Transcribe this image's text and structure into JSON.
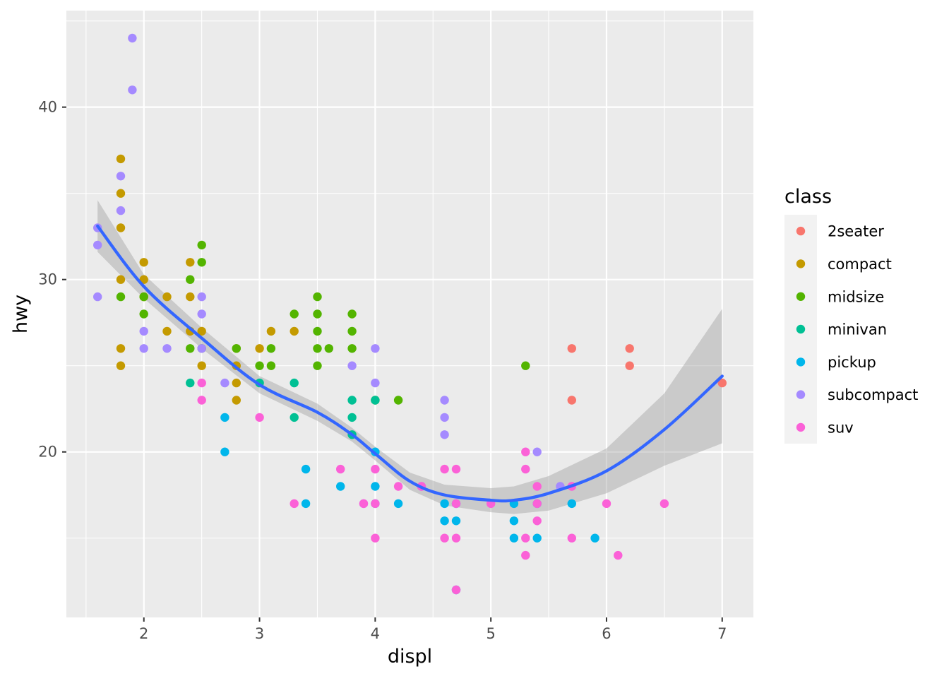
{
  "chart_data": {
    "type": "scatter",
    "xlabel": "displ",
    "ylabel": "hwy",
    "xlim": [
      1.33,
      7.27
    ],
    "ylim": [
      10.4,
      45.6
    ],
    "x_ticks": [
      2,
      3,
      4,
      5,
      6,
      7
    ],
    "y_ticks": [
      20,
      30,
      40
    ],
    "grid": true,
    "legend": {
      "title": "class",
      "position": "right",
      "entries": [
        {
          "name": "2seater",
          "color": "#F8766D"
        },
        {
          "name": "compact",
          "color": "#C49A00"
        },
        {
          "name": "midsize",
          "color": "#53B400"
        },
        {
          "name": "minivan",
          "color": "#00C094"
        },
        {
          "name": "pickup",
          "color": "#00B6EB"
        },
        {
          "name": "subcompact",
          "color": "#A58AFF"
        },
        {
          "name": "suv",
          "color": "#FB61D7"
        }
      ]
    },
    "series": [
      {
        "name": "2seater",
        "points": [
          [
            5.7,
            26
          ],
          [
            5.7,
            23
          ],
          [
            6.2,
            26
          ],
          [
            6.2,
            25
          ],
          [
            7.0,
            24
          ]
        ]
      },
      {
        "name": "compact",
        "points": [
          [
            1.8,
            37
          ],
          [
            1.8,
            35
          ],
          [
            1.8,
            33
          ],
          [
            1.8,
            30
          ],
          [
            1.8,
            26
          ],
          [
            1.8,
            25
          ],
          [
            2.0,
            31
          ],
          [
            2.0,
            30
          ],
          [
            2.0,
            29
          ],
          [
            2.2,
            29
          ],
          [
            2.2,
            27
          ],
          [
            2.4,
            31
          ],
          [
            2.4,
            29
          ],
          [
            2.4,
            27
          ],
          [
            2.5,
            27
          ],
          [
            2.5,
            25
          ],
          [
            2.8,
            26
          ],
          [
            2.8,
            25
          ],
          [
            2.8,
            24
          ],
          [
            2.8,
            23
          ],
          [
            3.0,
            26
          ],
          [
            3.1,
            27
          ],
          [
            3.3,
            27
          ]
        ]
      },
      {
        "name": "midsize",
        "points": [
          [
            1.8,
            29
          ],
          [
            2.0,
            29
          ],
          [
            2.0,
            28
          ],
          [
            2.4,
            30
          ],
          [
            2.4,
            26
          ],
          [
            2.5,
            32
          ],
          [
            2.5,
            31
          ],
          [
            2.5,
            26
          ],
          [
            2.8,
            26
          ],
          [
            3.0,
            25
          ],
          [
            3.1,
            26
          ],
          [
            3.1,
            25
          ],
          [
            3.3,
            28
          ],
          [
            3.5,
            29
          ],
          [
            3.5,
            28
          ],
          [
            3.5,
            27
          ],
          [
            3.5,
            26
          ],
          [
            3.5,
            25
          ],
          [
            3.6,
            26
          ],
          [
            3.8,
            28
          ],
          [
            3.8,
            27
          ],
          [
            3.8,
            26
          ],
          [
            4.0,
            23
          ],
          [
            4.2,
            23
          ],
          [
            5.3,
            25
          ]
        ]
      },
      {
        "name": "minivan",
        "points": [
          [
            2.4,
            24
          ],
          [
            3.0,
            24
          ],
          [
            3.3,
            24
          ],
          [
            3.3,
            22
          ],
          [
            3.8,
            23
          ],
          [
            3.8,
            22
          ],
          [
            3.8,
            21
          ],
          [
            4.0,
            23
          ]
        ]
      },
      {
        "name": "pickup",
        "points": [
          [
            2.7,
            22
          ],
          [
            2.7,
            20
          ],
          [
            3.4,
            19
          ],
          [
            3.4,
            17
          ],
          [
            3.7,
            18
          ],
          [
            4.0,
            20
          ],
          [
            4.0,
            18
          ],
          [
            4.0,
            17
          ],
          [
            4.2,
            17
          ],
          [
            4.6,
            17
          ],
          [
            4.6,
            16
          ],
          [
            4.7,
            17
          ],
          [
            4.7,
            16
          ],
          [
            4.7,
            12
          ],
          [
            5.2,
            17
          ],
          [
            5.2,
            16
          ],
          [
            5.2,
            15
          ],
          [
            5.4,
            17
          ],
          [
            5.4,
            15
          ],
          [
            5.7,
            17
          ],
          [
            5.9,
            15
          ]
        ]
      },
      {
        "name": "subcompact",
        "points": [
          [
            1.6,
            33
          ],
          [
            1.6,
            32
          ],
          [
            1.6,
            29
          ],
          [
            1.8,
            36
          ],
          [
            1.8,
            34
          ],
          [
            1.9,
            44
          ],
          [
            1.9,
            41
          ],
          [
            2.0,
            27
          ],
          [
            2.0,
            26
          ],
          [
            2.2,
            26
          ],
          [
            2.5,
            29
          ],
          [
            2.5,
            28
          ],
          [
            2.5,
            26
          ],
          [
            2.7,
            24
          ],
          [
            3.8,
            25
          ],
          [
            3.9,
            17
          ],
          [
            4.0,
            26
          ],
          [
            4.0,
            24
          ],
          [
            4.4,
            18
          ],
          [
            4.6,
            23
          ],
          [
            4.6,
            22
          ],
          [
            4.6,
            21
          ],
          [
            5.4,
            20
          ],
          [
            5.6,
            18
          ]
        ]
      },
      {
        "name": "suv",
        "points": [
          [
            2.5,
            24
          ],
          [
            2.5,
            23
          ],
          [
            3.0,
            22
          ],
          [
            3.3,
            17
          ],
          [
            3.7,
            19
          ],
          [
            3.9,
            17
          ],
          [
            4.0,
            19
          ],
          [
            4.0,
            17
          ],
          [
            4.0,
            15
          ],
          [
            4.2,
            18
          ],
          [
            4.4,
            18
          ],
          [
            4.6,
            19
          ],
          [
            4.6,
            15
          ],
          [
            4.7,
            19
          ],
          [
            4.7,
            17
          ],
          [
            4.7,
            15
          ],
          [
            4.7,
            12
          ],
          [
            5.0,
            17
          ],
          [
            5.3,
            20
          ],
          [
            5.3,
            19
          ],
          [
            5.3,
            15
          ],
          [
            5.3,
            14
          ],
          [
            5.4,
            18
          ],
          [
            5.4,
            17
          ],
          [
            5.4,
            16
          ],
          [
            5.7,
            18
          ],
          [
            5.7,
            15
          ],
          [
            6.0,
            17
          ],
          [
            6.1,
            14
          ],
          [
            6.5,
            17
          ]
        ]
      }
    ],
    "smooth": {
      "color": "#3366FF",
      "ribbon_color": "#999999",
      "x": [
        1.6,
        2.0,
        2.5,
        3.0,
        3.5,
        3.8,
        4.0,
        4.3,
        4.6,
        5.0,
        5.2,
        5.5,
        6.0,
        6.5,
        7.0
      ],
      "y": [
        33.1,
        29.6,
        26.6,
        23.9,
        22.3,
        21.0,
        19.9,
        18.3,
        17.5,
        17.2,
        17.2,
        17.6,
        18.9,
        21.3,
        24.4
      ],
      "lower": [
        31.6,
        28.9,
        26.0,
        23.4,
        21.8,
        20.6,
        19.5,
        17.8,
        16.9,
        16.5,
        16.4,
        16.6,
        17.6,
        19.2,
        20.5
      ],
      "upper": [
        34.6,
        30.3,
        27.2,
        24.4,
        22.8,
        21.4,
        20.3,
        18.8,
        18.1,
        17.9,
        18.0,
        18.6,
        20.2,
        23.4,
        28.3
      ]
    }
  }
}
